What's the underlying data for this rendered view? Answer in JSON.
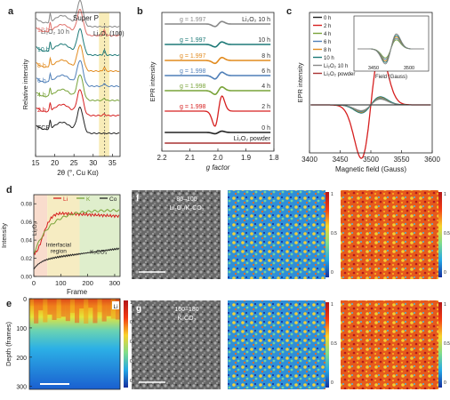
{
  "chart_data": [
    {
      "panel": "a",
      "type": "line",
      "xlabel": "2θ (°, Cu Kα)",
      "ylabel": "Relative intensity",
      "x_ticks": [
        "15",
        "20",
        "25",
        "30",
        "35"
      ],
      "xlim": [
        15,
        37
      ],
      "top_label": "Super P",
      "annotations": [
        "Li₂O₂ 10 h",
        "Li₂O₂ (100)"
      ],
      "series": [
        {
          "name": "12 h",
          "color": "#e0706a"
        },
        {
          "name": "10 h",
          "color": "#1e7a78"
        },
        {
          "name": "8 h",
          "color": "#e28b1f"
        },
        {
          "name": "6 h",
          "color": "#4f7fb8"
        },
        {
          "name": "4 h",
          "color": "#79a339"
        },
        {
          "name": "2 h",
          "color": "#d62020"
        },
        {
          "name": "FCP",
          "color": "#222222"
        }
      ]
    },
    {
      "panel": "b",
      "type": "line",
      "xlabel": "g factor",
      "ylabel": "EPR intensity",
      "x_ticks": [
        "2.2",
        "2.1",
        "2.0",
        "1.9",
        "1.8"
      ],
      "xlim": [
        2.2,
        1.8
      ],
      "series": [
        {
          "name": "Li₂O₂ 10 h",
          "g": "g = 1.997",
          "color": "#888888"
        },
        {
          "name": "10 h",
          "g": "g = 1.997",
          "color": "#1e7a78"
        },
        {
          "name": "8 h",
          "g": "g = 1.997",
          "color": "#e28b1f"
        },
        {
          "name": "6 h",
          "g": "g = 1.998",
          "color": "#4f7fb8"
        },
        {
          "name": "4 h",
          "g": "g = 1.998",
          "color": "#79a339"
        },
        {
          "name": "2 h",
          "g": "g = 1.998",
          "color": "#d62020"
        },
        {
          "name": "0 h",
          "g": "",
          "color": "#222222"
        },
        {
          "name": "Li₂O₂ powder",
          "g": "",
          "color": "#a83232"
        }
      ]
    },
    {
      "panel": "c",
      "type": "line",
      "xlabel": "Magnetic field (Gauss)",
      "ylabel": "EPR intensity",
      "x_ticks": [
        "3400",
        "3450",
        "3500",
        "3550",
        "3600"
      ],
      "xlim": [
        3400,
        3600
      ],
      "inset_xlabel": "Field (Gauss)",
      "inset_ticks": [
        "3450",
        "3500"
      ],
      "legend": [
        {
          "name": "0 h",
          "color": "#222222"
        },
        {
          "name": "2 h",
          "color": "#d62020"
        },
        {
          "name": "4 h",
          "color": "#79a339"
        },
        {
          "name": "6 h",
          "color": "#4f7fb8"
        },
        {
          "name": "8 h",
          "color": "#e28b1f"
        },
        {
          "name": "10 h",
          "color": "#1e7a78"
        },
        {
          "name": "Li₂O₂ 10 h",
          "color": "#888888"
        },
        {
          "name": "Li₂O₂ powder",
          "color": "#a83232"
        }
      ]
    },
    {
      "panel": "d",
      "type": "line",
      "xlabel": "Frame",
      "ylabel": "Intensity",
      "x_ticks": [
        "0",
        "100",
        "200",
        "300"
      ],
      "y_ticks": [
        "0.00",
        "0.02",
        "0.04",
        "0.06",
        "0.08"
      ],
      "xlim": [
        0,
        320
      ],
      "ylim": [
        0,
        0.09
      ],
      "legend": [
        {
          "name": "Li",
          "color": "#d62020"
        },
        {
          "name": "K",
          "color": "#79a339"
        },
        {
          "name": "Co",
          "color": "#222222"
        }
      ],
      "regions": [
        "Li₂O₂",
        "Interfacial region",
        "K₂CO₃"
      ]
    },
    {
      "panel": "e",
      "type": "heatmap",
      "ylabel": "Depth (frames)",
      "y_ticks": [
        "0",
        "100",
        "200",
        "300"
      ],
      "colorbar_ticks": [
        "1",
        "0.8",
        "0.6",
        "0.4",
        "0.2"
      ],
      "corner_label": "Li"
    }
  ],
  "images": {
    "f": {
      "letter": "f",
      "line1": "80–100",
      "line2": "Li₂O₂/K₂CO₃"
    },
    "g": {
      "letter": "g",
      "line1": "160–180",
      "line2": "K₂CO₃"
    },
    "f_map1_ticks": [
      "1",
      "0.5",
      "0"
    ],
    "f_map2_ticks": [
      "1",
      "0.5",
      "0"
    ],
    "g_map1_ticks": [
      "1",
      "0.5",
      "0"
    ],
    "g_map2_ticks": [
      "1",
      "0.5",
      "0"
    ]
  },
  "panel_letters": [
    "a",
    "b",
    "c",
    "d",
    "e",
    "f",
    "g"
  ]
}
